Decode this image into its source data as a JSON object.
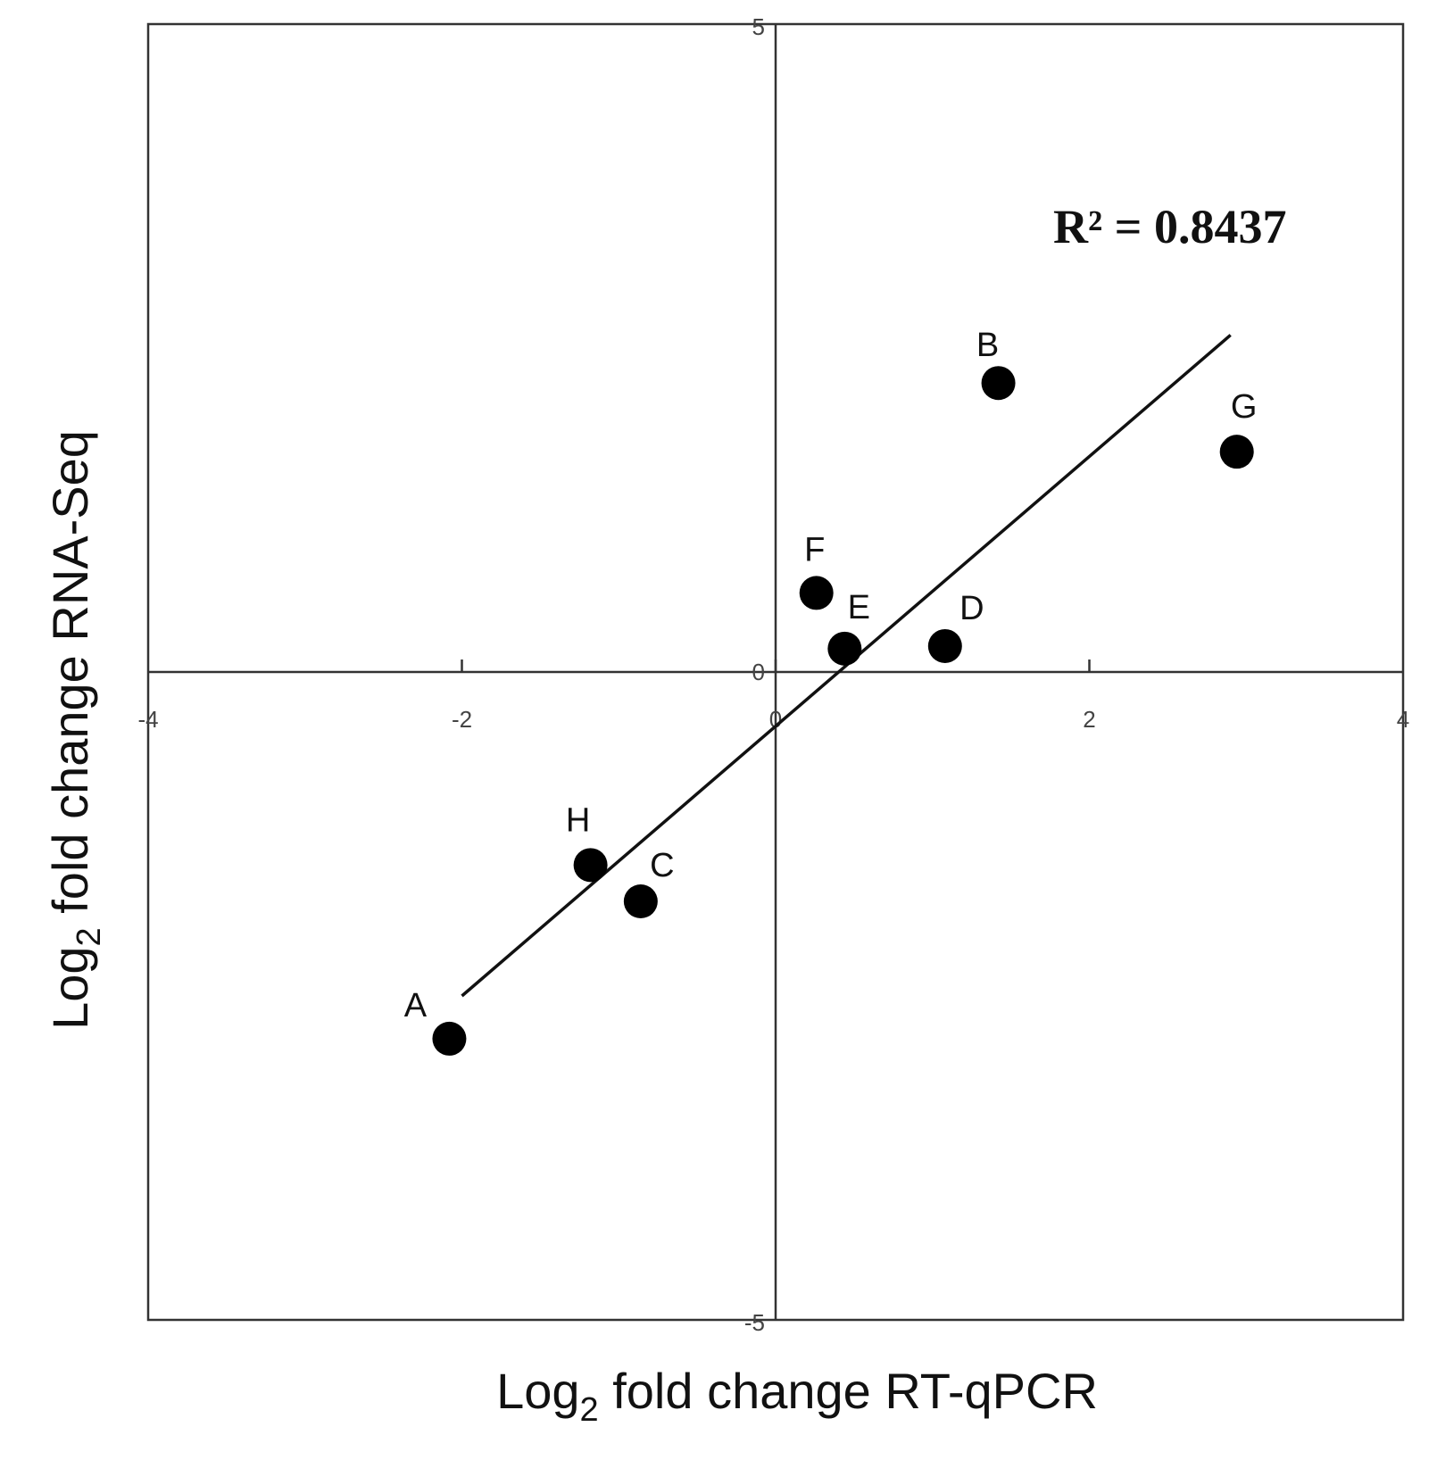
{
  "chart_data": {
    "type": "scatter",
    "xlabel": {
      "main": "Log",
      "sub": "2",
      "rest": " fold change RT-qPCR"
    },
    "ylabel": {
      "main": "Log",
      "sub": "2",
      "rest": " fold change RNA-Seq"
    },
    "xlim": [
      -4,
      4
    ],
    "ylim": [
      -5,
      5
    ],
    "x_ticks": [
      {
        "value": -4,
        "label": "-4"
      },
      {
        "value": -2,
        "label": "-2"
      },
      {
        "value": 0,
        "label": "0"
      },
      {
        "value": 2,
        "label": "2"
      },
      {
        "value": 4,
        "label": "4"
      }
    ],
    "y_ticks": [
      {
        "value": 5,
        "label": "5"
      },
      {
        "value": 0,
        "label": "0"
      },
      {
        "value": -5,
        "label": "-5"
      }
    ],
    "points": [
      {
        "label": "A",
        "x": -2.08,
        "y": -2.83
      },
      {
        "label": "B",
        "x": 1.42,
        "y": 2.23
      },
      {
        "label": "C",
        "x": -0.86,
        "y": -1.77
      },
      {
        "label": "D",
        "x": 1.08,
        "y": 0.2
      },
      {
        "label": "E",
        "x": 0.44,
        "y": 0.18
      },
      {
        "label": "F",
        "x": 0.26,
        "y": 0.61
      },
      {
        "label": "G",
        "x": 2.94,
        "y": 1.7
      },
      {
        "label": "H",
        "x": -1.18,
        "y": -1.49
      }
    ],
    "trendline": {
      "x": [
        -2.0,
        2.9
      ],
      "y": [
        -2.5,
        2.6
      ]
    },
    "annotation": "R² = 0.8437",
    "grid": false,
    "marker_color": "#000000"
  }
}
